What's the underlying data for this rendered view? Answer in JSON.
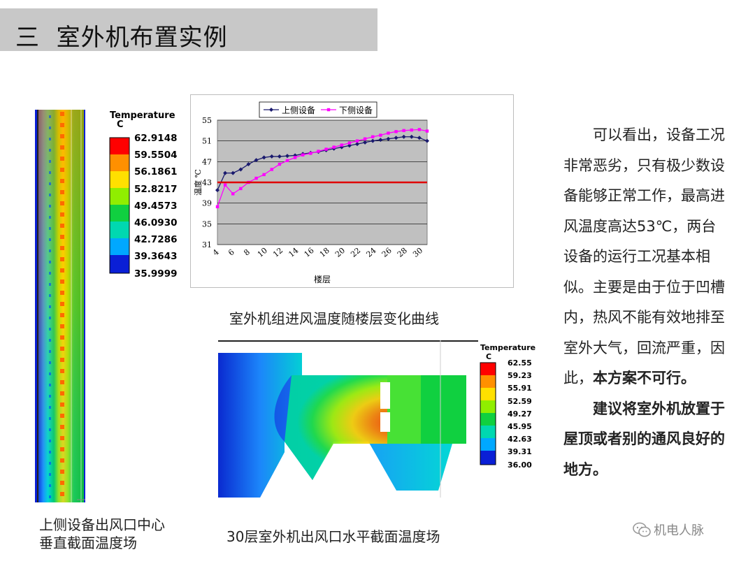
{
  "slide": {
    "title": "三  室外机布置实例"
  },
  "vertical_slice": {
    "legend_title": "Temperature",
    "legend_unit": "C",
    "legend_values": [
      "62.9148",
      "59.5504",
      "56.1861",
      "52.8217",
      "49.4573",
      "46.0930",
      "42.7286",
      "39.3643",
      "35.9999"
    ],
    "caption_line1": "上侧设备出风口中心",
    "caption_line2": "垂直截面温度场"
  },
  "line_chart": {
    "caption": "室外机组进风温度随楼层变化曲线"
  },
  "horizontal_slice": {
    "legend_title": "Temperature",
    "legend_unit": "C",
    "legend_values": [
      "62.55",
      "59.23",
      "55.91",
      "52.59",
      "49.27",
      "45.95",
      "42.63",
      "39.31",
      "36.00"
    ],
    "caption": "30层室外机出风口水平截面温度场"
  },
  "side_text": {
    "p1": "可以看出，设备工况非常恶劣，只有极少数设备能够正常工作，最高进风温度高达53℃，两台设备的运行工况基本相似。主要是由于位于凹槽内，热风不能有效地排至室外大气，回流严重，因此，",
    "p1_bold": "本方案不可行。",
    "p2_bold": "建议将室外机放置于屋顶或者别的通风良好的地方。"
  },
  "watermark": {
    "text": "机电人脉",
    "icon": "wechat-icon"
  },
  "chart_data": {
    "type": "line",
    "x": [
      4,
      5,
      6,
      7,
      8,
      9,
      10,
      11,
      12,
      13,
      14,
      15,
      16,
      17,
      18,
      19,
      20,
      21,
      22,
      23,
      24,
      25,
      26,
      27,
      28,
      29,
      30,
      31
    ],
    "xticks": [
      4,
      6,
      8,
      10,
      12,
      14,
      16,
      18,
      20,
      22,
      24,
      26,
      28,
      30
    ],
    "xlim": [
      4,
      31
    ],
    "yticks": [
      31,
      35,
      39,
      43,
      47,
      51,
      55
    ],
    "ylim": [
      31,
      55
    ],
    "xlabel": "楼层",
    "ylabel": "温度 ℃",
    "legend_position": "top",
    "grid": "horizontal",
    "series": [
      {
        "name": "上侧设备",
        "color": "#1a1a6e",
        "marker": "diamond",
        "values": [
          41.5,
          44.8,
          44.8,
          45.5,
          46.5,
          47.3,
          47.8,
          48.0,
          48.0,
          48.1,
          48.2,
          48.5,
          48.7,
          48.9,
          49.2,
          49.5,
          49.8,
          50.1,
          50.4,
          50.7,
          51.0,
          51.2,
          51.4,
          51.6,
          51.8,
          51.8,
          51.6,
          51.0
        ]
      },
      {
        "name": "下侧设备",
        "color": "#ff00ff",
        "marker": "square",
        "values": [
          38.3,
          42.5,
          40.8,
          41.8,
          43.0,
          43.8,
          44.5,
          45.5,
          46.5,
          47.2,
          47.8,
          48.3,
          48.6,
          49.0,
          49.4,
          49.8,
          50.2,
          50.6,
          51.0,
          51.4,
          51.8,
          52.1,
          52.5,
          52.8,
          53.0,
          53.1,
          53.2,
          52.9
        ]
      },
      {
        "name": "",
        "color": "#e00000",
        "marker": "none",
        "values": [
          43,
          43,
          43,
          43,
          43,
          43,
          43,
          43,
          43,
          43,
          43,
          43,
          43,
          43,
          43,
          43,
          43,
          43,
          43,
          43,
          43,
          43,
          43,
          43,
          43,
          43,
          43,
          43
        ]
      }
    ]
  }
}
